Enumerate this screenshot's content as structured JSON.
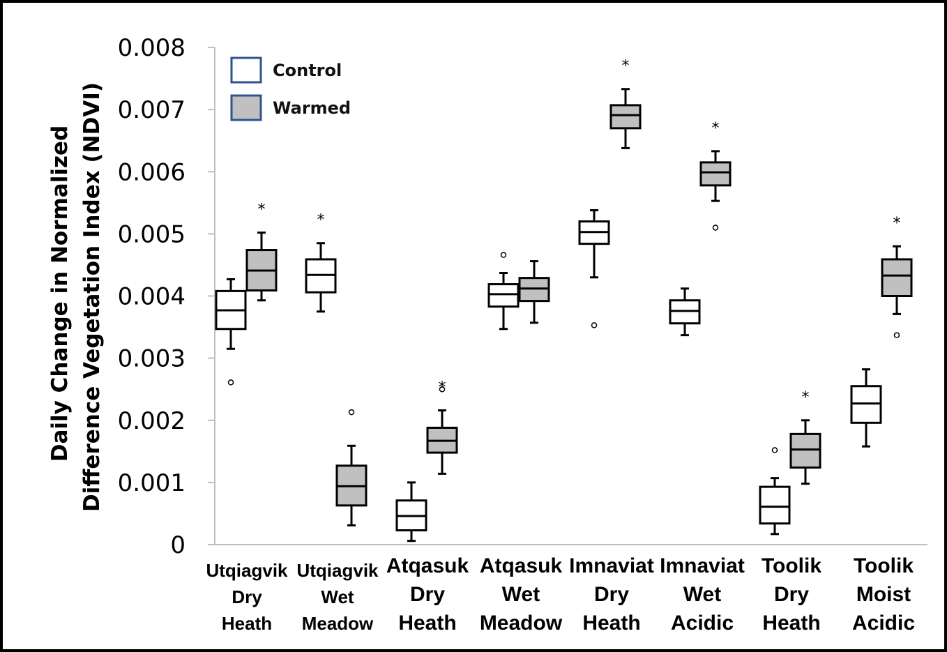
{
  "chart_data": {
    "type": "boxplot",
    "ylabel_line1": "Daily Change in Normalized",
    "ylabel_line2": "Difference Vegetation Index (NDVI)",
    "ylim": [
      0,
      0.008
    ],
    "yticks": [
      "0",
      "0.001",
      "0.002",
      "0.003",
      "0.004",
      "0.005",
      "0.006",
      "0.007",
      "0.008"
    ],
    "legend": [
      {
        "name": "Control",
        "fill": "#ffffff",
        "border": "#2f528f"
      },
      {
        "name": "Warmed",
        "fill": "#c0c0c0",
        "border": "#2f528f"
      }
    ],
    "categories": [
      {
        "label": [
          "Utqiagvik",
          "Dry",
          "Heath"
        ],
        "size": "small"
      },
      {
        "label": [
          "Utqiagvik",
          "Wet",
          "Meadow"
        ],
        "size": "small"
      },
      {
        "label": [
          "Atqasuk",
          "Dry",
          "Heath"
        ],
        "size": "large"
      },
      {
        "label": [
          "Atqasuk",
          "Wet",
          "Meadow"
        ],
        "size": "large"
      },
      {
        "label": [
          "Imnaviat",
          "Dry",
          "Heath"
        ],
        "size": "large"
      },
      {
        "label": [
          "Imnaviat",
          "Wet",
          "Acidic"
        ],
        "size": "large"
      },
      {
        "label": [
          "Toolik",
          "Dry",
          "Heath"
        ],
        "size": "large"
      },
      {
        "label": [
          "Toolik",
          "Moist",
          "Acidic"
        ],
        "size": "large"
      }
    ],
    "series": [
      {
        "name": "Control",
        "color": "#ffffff",
        "boxes": [
          {
            "min": 0.00315,
            "q1": 0.00347,
            "median": 0.00377,
            "q3": 0.00408,
            "max": 0.00427,
            "outliers": [
              0.00261
            ],
            "star": false
          },
          {
            "min": 0.00375,
            "q1": 0.00406,
            "median": 0.00434,
            "q3": 0.00459,
            "max": 0.00485,
            "outliers": [],
            "star": true
          },
          {
            "min": 6e-05,
            "q1": 0.00023,
            "median": 0.00046,
            "q3": 0.00071,
            "max": 0.001,
            "outliers": [],
            "star": false
          },
          {
            "min": 0.00347,
            "q1": 0.00383,
            "median": 0.00403,
            "q3": 0.00419,
            "max": 0.00437,
            "outliers": [
              0.00466
            ],
            "star": false
          },
          {
            "min": 0.0043,
            "q1": 0.00484,
            "median": 0.00503,
            "q3": 0.0052,
            "max": 0.00538,
            "outliers": [
              0.00353
            ],
            "star": false
          },
          {
            "min": 0.00337,
            "q1": 0.00356,
            "median": 0.00376,
            "q3": 0.00393,
            "max": 0.00412,
            "outliers": [],
            "star": false
          },
          {
            "min": 0.00017,
            "q1": 0.00034,
            "median": 0.00061,
            "q3": 0.00093,
            "max": 0.00107,
            "outliers": [
              0.00152
            ],
            "star": false
          },
          {
            "min": 0.00158,
            "q1": 0.00196,
            "median": 0.00227,
            "q3": 0.00255,
            "max": 0.00282,
            "outliers": [],
            "star": false
          }
        ]
      },
      {
        "name": "Warmed",
        "color": "#c0c0c0",
        "boxes": [
          {
            "min": 0.00393,
            "q1": 0.00409,
            "median": 0.00441,
            "q3": 0.00474,
            "max": 0.00502,
            "outliers": [],
            "star": true
          },
          {
            "min": 0.00031,
            "q1": 0.00063,
            "median": 0.00094,
            "q3": 0.00127,
            "max": 0.00159,
            "outliers": [
              0.00213
            ],
            "star": false
          },
          {
            "min": 0.00114,
            "q1": 0.00148,
            "median": 0.00167,
            "q3": 0.00188,
            "max": 0.00216,
            "outliers": [
              0.0025
            ],
            "star": true
          },
          {
            "min": 0.00357,
            "q1": 0.00392,
            "median": 0.00412,
            "q3": 0.00429,
            "max": 0.00456,
            "outliers": [],
            "star": false
          },
          {
            "min": 0.00638,
            "q1": 0.0067,
            "median": 0.00691,
            "q3": 0.00707,
            "max": 0.00733,
            "outliers": [],
            "star": true
          },
          {
            "min": 0.00553,
            "q1": 0.00578,
            "median": 0.00599,
            "q3": 0.00615,
            "max": 0.00633,
            "outliers": [
              0.0051
            ],
            "star": true
          },
          {
            "min": 0.00098,
            "q1": 0.00124,
            "median": 0.00153,
            "q3": 0.00178,
            "max": 0.002,
            "outliers": [],
            "star": true
          },
          {
            "min": 0.00371,
            "q1": 0.004,
            "median": 0.00433,
            "q3": 0.00459,
            "max": 0.0048,
            "outliers": [
              0.00337
            ],
            "star": true
          }
        ]
      }
    ],
    "significance_marker": "*"
  }
}
